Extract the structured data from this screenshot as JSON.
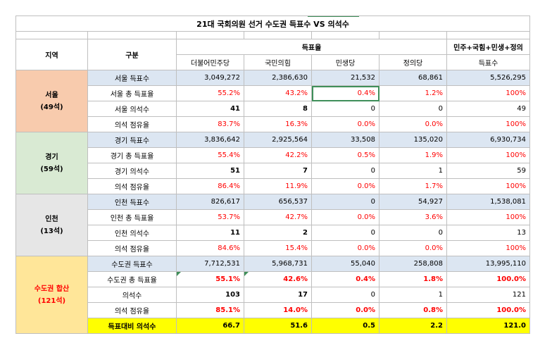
{
  "title": "21대 국회의원 선거 수도권 득표수 VS 의석수",
  "header": {
    "region": "지역",
    "category": "구분",
    "vote_rate_group": "득표율",
    "combined_group": "민주+국힘+민생+정의",
    "parties": [
      "더불어민주당",
      "국민의힘",
      "민생당",
      "정의당"
    ],
    "combined_sub": "득표수"
  },
  "regions": [
    {
      "name": "서울",
      "seats": "(49석)",
      "rows": [
        {
          "label": "서울 득표수",
          "values": [
            "3,049,272",
            "2,386,630",
            "21,532",
            "68,861",
            "5,526,295"
          ]
        },
        {
          "label": "서울 총 득표율",
          "values": [
            "55.2%",
            "43.2%",
            "0.4%",
            "1.2%",
            "100%"
          ]
        },
        {
          "label": "서울 의석수",
          "values": [
            "41",
            "8",
            "0",
            "0",
            "49"
          ]
        },
        {
          "label": "의석 점유율",
          "values": [
            "83.7%",
            "16.3%",
            "0.0%",
            "0.0%",
            "100%"
          ]
        }
      ]
    },
    {
      "name": "경기",
      "seats": "(59석)",
      "rows": [
        {
          "label": "경기 득표수",
          "values": [
            "3,836,642",
            "2,925,564",
            "33,508",
            "135,020",
            "6,930,734"
          ]
        },
        {
          "label": "경기 총 득표율",
          "values": [
            "55.4%",
            "42.2%",
            "0.5%",
            "1.9%",
            "100%"
          ]
        },
        {
          "label": "경기 의석수",
          "values": [
            "51",
            "7",
            "0",
            "1",
            "59"
          ]
        },
        {
          "label": "의석 점유율",
          "values": [
            "86.4%",
            "11.9%",
            "0.0%",
            "1.7%",
            "100%"
          ]
        }
      ]
    },
    {
      "name": "인천",
      "seats": "(13석)",
      "rows": [
        {
          "label": "인천 득표수",
          "values": [
            "826,617",
            "656,537",
            "0",
            "54,927",
            "1,538,081"
          ]
        },
        {
          "label": "인천 총 득표율",
          "values": [
            "53.7%",
            "42.7%",
            "0.0%",
            "3.6%",
            "100%"
          ]
        },
        {
          "label": "인천 의석수",
          "values": [
            "11",
            "2",
            "0",
            "0",
            "13"
          ]
        },
        {
          "label": "의석 점유율",
          "values": [
            "84.6%",
            "15.4%",
            "0.0%",
            "0.0%",
            "100%"
          ]
        }
      ]
    },
    {
      "name": "수도권 합산",
      "seats": "(121석)",
      "rows": [
        {
          "label": "수도권 득표수",
          "values": [
            "7,712,531",
            "5,968,731",
            "55,040",
            "258,808",
            "13,995,110"
          ]
        },
        {
          "label": "수도권 총 득표율",
          "values": [
            "55.1%",
            "42.6%",
            "0.4%",
            "1.8%",
            "100.0%"
          ]
        },
        {
          "label": "의석수",
          "values": [
            "103",
            "17",
            "0",
            "1",
            "121"
          ]
        },
        {
          "label": "의석 점유율",
          "values": [
            "85.1%",
            "14.0%",
            "0.0%",
            "0.8%",
            "100.0%"
          ]
        },
        {
          "label": "득표대비 의석수",
          "values": [
            "66.7",
            "51.6",
            "0.5",
            "2.2",
            "121.0"
          ]
        }
      ]
    }
  ]
}
